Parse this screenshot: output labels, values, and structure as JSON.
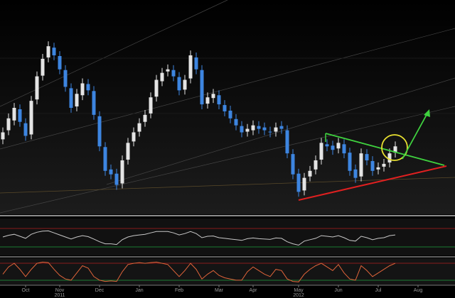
{
  "chart_data": {
    "type": "candlestick",
    "xlim": [
      -0.5,
      79.5
    ],
    "xticks": [
      {
        "value": 4,
        "label": "Oct"
      },
      {
        "value": 10,
        "label": "Nov"
      },
      {
        "value": 17,
        "label": "Dec"
      },
      {
        "value": 24,
        "label": "Jan"
      },
      {
        "value": 31,
        "label": "Feb"
      },
      {
        "value": 38,
        "label": "Mar"
      },
      {
        "value": 44,
        "label": "Apr"
      },
      {
        "value": 52,
        "label": "May"
      },
      {
        "value": 59,
        "label": "Jun"
      },
      {
        "value": 66,
        "label": "Jul"
      },
      {
        "value": 73,
        "label": "Aug"
      }
    ],
    "year_ticks": [
      {
        "value": 10,
        "label": "2011"
      },
      {
        "value": 52,
        "label": "2012"
      }
    ],
    "ylim": [
      0,
      300
    ],
    "up_color": "#e4e4e4",
    "down_color": "#3d85e0",
    "open": [
      105,
      118,
      132,
      148,
      128,
      112,
      162,
      196,
      222,
      236,
      224,
      204,
      178,
      152,
      168,
      184,
      174,
      138,
      94,
      62,
      56,
      42,
      76,
      102,
      116,
      130,
      142,
      166,
      188,
      202,
      204,
      194,
      176,
      192,
      222,
      204,
      156,
      164,
      168,
      154,
      146,
      134,
      124,
      116,
      118,
      124,
      122,
      116,
      116,
      124,
      118,
      84,
      56,
      32,
      52,
      62,
      76,
      98,
      96,
      92,
      98,
      86,
      62,
      52,
      84,
      74,
      62,
      66,
      72,
      86
    ],
    "high": [
      122,
      142,
      157,
      155,
      135,
      167,
      202,
      227,
      245,
      243,
      231,
      211,
      185,
      177,
      192,
      191,
      181,
      145,
      101,
      69,
      63,
      82,
      107,
      122,
      135,
      147,
      172,
      197,
      207,
      212,
      211,
      201,
      197,
      232,
      229,
      211,
      172,
      177,
      175,
      161,
      153,
      141,
      131,
      127,
      132,
      131,
      129,
      123,
      129,
      131,
      125,
      91,
      63,
      57,
      67,
      82,
      107,
      105,
      103,
      107,
      105,
      93,
      69,
      92,
      91,
      81,
      72,
      77,
      92,
      102
    ],
    "low": [
      98,
      111,
      125,
      123,
      103,
      105,
      155,
      189,
      215,
      218,
      198,
      173,
      143,
      145,
      161,
      168,
      133,
      88,
      53,
      48,
      33,
      35,
      69,
      95,
      109,
      123,
      135,
      159,
      181,
      195,
      188,
      168,
      169,
      185,
      198,
      148,
      149,
      157,
      148,
      138,
      128,
      118,
      108,
      109,
      111,
      113,
      111,
      108,
      109,
      113,
      78,
      48,
      23,
      25,
      45,
      55,
      69,
      88,
      83,
      85,
      78,
      53,
      43,
      45,
      68,
      53,
      55,
      59,
      65,
      79
    ],
    "close": [
      115,
      135,
      150,
      130,
      110,
      160,
      195,
      220,
      238,
      225,
      205,
      180,
      150,
      170,
      185,
      175,
      140,
      95,
      60,
      55,
      40,
      75,
      100,
      115,
      128,
      140,
      165,
      190,
      200,
      205,
      195,
      175,
      190,
      225,
      205,
      155,
      165,
      170,
      155,
      145,
      135,
      125,
      115,
      120,
      125,
      120,
      118,
      115,
      122,
      120,
      85,
      55,
      30,
      50,
      60,
      75,
      100,
      95,
      90,
      100,
      85,
      60,
      50,
      85,
      75,
      60,
      65,
      70,
      85,
      95
    ],
    "rsi": {
      "ylim": [
        0,
        100
      ],
      "color": "#c8c8c8",
      "values": [
        50,
        55,
        58,
        52,
        46,
        58,
        64,
        67,
        68,
        62,
        56,
        50,
        44,
        50,
        54,
        51,
        44,
        36,
        30,
        30,
        28,
        42,
        50,
        54,
        56,
        58,
        62,
        66,
        66,
        66,
        62,
        56,
        60,
        66,
        60,
        48,
        52,
        53,
        48,
        46,
        44,
        42,
        40,
        45,
        47,
        45,
        44,
        43,
        47,
        46,
        36,
        30,
        26,
        38,
        42,
        46,
        54,
        52,
        50,
        54,
        48,
        40,
        38,
        52,
        48,
        42,
        46,
        48,
        54,
        56
      ]
    },
    "stochastic": {
      "ylim": [
        0,
        100
      ],
      "color": "#e0643a",
      "values": [
        40,
        70,
        85,
        60,
        30,
        60,
        85,
        90,
        88,
        60,
        35,
        20,
        15,
        45,
        75,
        65,
        30,
        15,
        10,
        12,
        10,
        50,
        80,
        85,
        88,
        85,
        88,
        90,
        85,
        80,
        55,
        30,
        55,
        85,
        60,
        20,
        40,
        55,
        35,
        25,
        20,
        15,
        15,
        50,
        70,
        55,
        40,
        30,
        60,
        55,
        20,
        10,
        8,
        40,
        60,
        75,
        85,
        70,
        55,
        80,
        45,
        20,
        15,
        75,
        55,
        30,
        45,
        60,
        75,
        85
      ]
    }
  }
}
